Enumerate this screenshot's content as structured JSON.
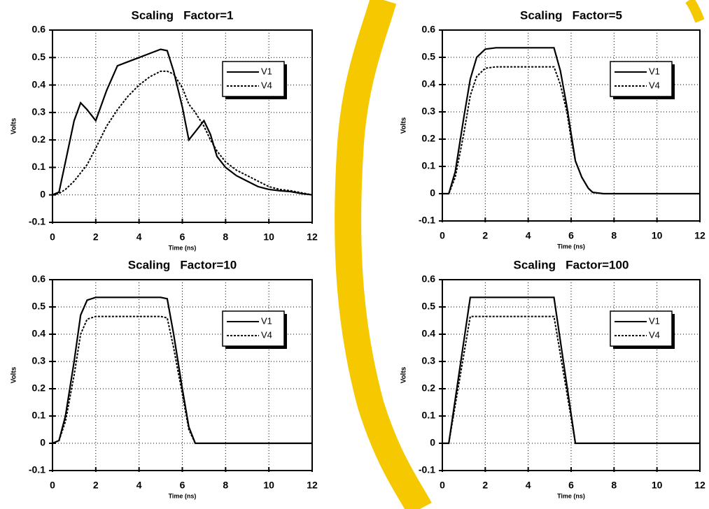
{
  "chart_data": [
    {
      "type": "line",
      "title": "Scaling   Factor=1",
      "x_label": "Time (ns)",
      "y_label": "Volts",
      "x": [
        0,
        0.3,
        0.6,
        1,
        1.3,
        1.6,
        2,
        2.5,
        3,
        3.5,
        4,
        4.5,
        5,
        5.3,
        5.6,
        6,
        6.3,
        6.6,
        7,
        7.3,
        7.6,
        8,
        8.5,
        9,
        9.5,
        10,
        10.5,
        11,
        11.5,
        12
      ],
      "series": [
        {
          "name": "V1",
          "color": "#000000",
          "linestyle": "solid",
          "values": [
            0,
            0.01,
            0.12,
            0.27,
            0.335,
            0.31,
            0.27,
            0.38,
            0.47,
            0.485,
            0.5,
            0.515,
            0.53,
            0.525,
            0.45,
            0.32,
            0.2,
            0.23,
            0.27,
            0.22,
            0.14,
            0.1,
            0.07,
            0.05,
            0.03,
            0.02,
            0.015,
            0.012,
            0.005,
            0
          ]
        },
        {
          "name": "V4",
          "color": "#000000",
          "linestyle": "dotted",
          "values": [
            0,
            0.005,
            0.02,
            0.05,
            0.08,
            0.11,
            0.17,
            0.25,
            0.31,
            0.36,
            0.4,
            0.43,
            0.45,
            0.45,
            0.44,
            0.39,
            0.33,
            0.3,
            0.25,
            0.2,
            0.16,
            0.12,
            0.09,
            0.07,
            0.05,
            0.03,
            0.02,
            0.015,
            0.008,
            0
          ]
        }
      ],
      "xlim": [
        0,
        12
      ],
      "ylim": [
        -0.1,
        0.6
      ],
      "xticks": [
        0,
        2,
        4,
        6,
        8,
        10,
        12
      ],
      "yticks": [
        -0.1,
        0,
        0.1,
        0.2,
        0.3,
        0.4,
        0.5,
        0.6
      ],
      "grid": true,
      "legend": "upper right"
    },
    {
      "type": "line",
      "title": "Scaling   Factor=5",
      "x_label": "Time (ns)",
      "y_label": "Volts",
      "x": [
        0,
        0.3,
        0.6,
        1,
        1.3,
        1.6,
        2,
        2.5,
        3,
        4,
        5,
        5.2,
        5.5,
        5.8,
        6,
        6.2,
        6.5,
        6.8,
        7,
        7.5,
        8,
        10,
        12
      ],
      "series": [
        {
          "name": "V1",
          "color": "#000000",
          "linestyle": "solid",
          "values": [
            0,
            0,
            0.08,
            0.28,
            0.42,
            0.5,
            0.53,
            0.535,
            0.535,
            0.535,
            0.535,
            0.535,
            0.45,
            0.32,
            0.22,
            0.12,
            0.06,
            0.02,
            0.005,
            0,
            0,
            0,
            0
          ]
        },
        {
          "name": "V4",
          "color": "#000000",
          "linestyle": "dotted",
          "values": [
            0,
            0,
            0.06,
            0.22,
            0.36,
            0.43,
            0.46,
            0.465,
            0.465,
            0.465,
            0.465,
            0.465,
            0.4,
            0.3,
            0.2,
            0.12,
            0.06,
            0.02,
            0.005,
            0,
            0,
            0,
            0
          ]
        }
      ],
      "xlim": [
        0,
        12
      ],
      "ylim": [
        -0.1,
        0.6
      ],
      "xticks": [
        0,
        2,
        4,
        6,
        8,
        10,
        12
      ],
      "yticks": [
        -0.1,
        0,
        0.1,
        0.2,
        0.3,
        0.4,
        0.5,
        0.6
      ],
      "grid": true,
      "legend": "upper right"
    },
    {
      "type": "line",
      "title": "Scaling   Factor=10",
      "x_label": "Time (ns)",
      "y_label": "Volts",
      "x": [
        0,
        0.3,
        0.6,
        1,
        1.3,
        1.6,
        2,
        3,
        4,
        5,
        5.3,
        5.6,
        6,
        6.3,
        6.6,
        7,
        8,
        10,
        12
      ],
      "series": [
        {
          "name": "V1",
          "color": "#000000",
          "linestyle": "solid",
          "values": [
            0,
            0.01,
            0.1,
            0.3,
            0.47,
            0.525,
            0.535,
            0.535,
            0.535,
            0.535,
            0.53,
            0.4,
            0.2,
            0.06,
            0,
            0,
            0,
            0,
            0
          ]
        },
        {
          "name": "V4",
          "color": "#000000",
          "linestyle": "dotted",
          "values": [
            0,
            0.01,
            0.08,
            0.25,
            0.4,
            0.455,
            0.465,
            0.465,
            0.465,
            0.465,
            0.46,
            0.35,
            0.18,
            0.05,
            0,
            0,
            0,
            0,
            0
          ]
        }
      ],
      "xlim": [
        0,
        12
      ],
      "ylim": [
        -0.1,
        0.6
      ],
      "xticks": [
        0,
        2,
        4,
        6,
        8,
        10,
        12
      ],
      "yticks": [
        -0.1,
        0,
        0.1,
        0.2,
        0.3,
        0.4,
        0.5,
        0.6
      ],
      "grid": true,
      "legend": "upper right"
    },
    {
      "type": "line",
      "title": "Scaling   Factor=100",
      "x_label": "Time (ns)",
      "y_label": "Volts",
      "x": [
        0,
        0.3,
        1.3,
        5.2,
        6.2,
        12
      ],
      "series": [
        {
          "name": "V1",
          "color": "#000000",
          "linestyle": "solid",
          "values": [
            0,
            0,
            0.535,
            0.535,
            0,
            0
          ]
        },
        {
          "name": "V4",
          "color": "#000000",
          "linestyle": "dotted",
          "values": [
            0,
            0,
            0.465,
            0.465,
            0,
            0
          ]
        }
      ],
      "xlim": [
        0,
        12
      ],
      "ylim": [
        -0.1,
        0.6
      ],
      "xticks": [
        0,
        2,
        4,
        6,
        8,
        10,
        12
      ],
      "yticks": [
        -0.1,
        0,
        0.1,
        0.2,
        0.3,
        0.4,
        0.5,
        0.6
      ],
      "grid": true,
      "legend": "upper right"
    }
  ]
}
